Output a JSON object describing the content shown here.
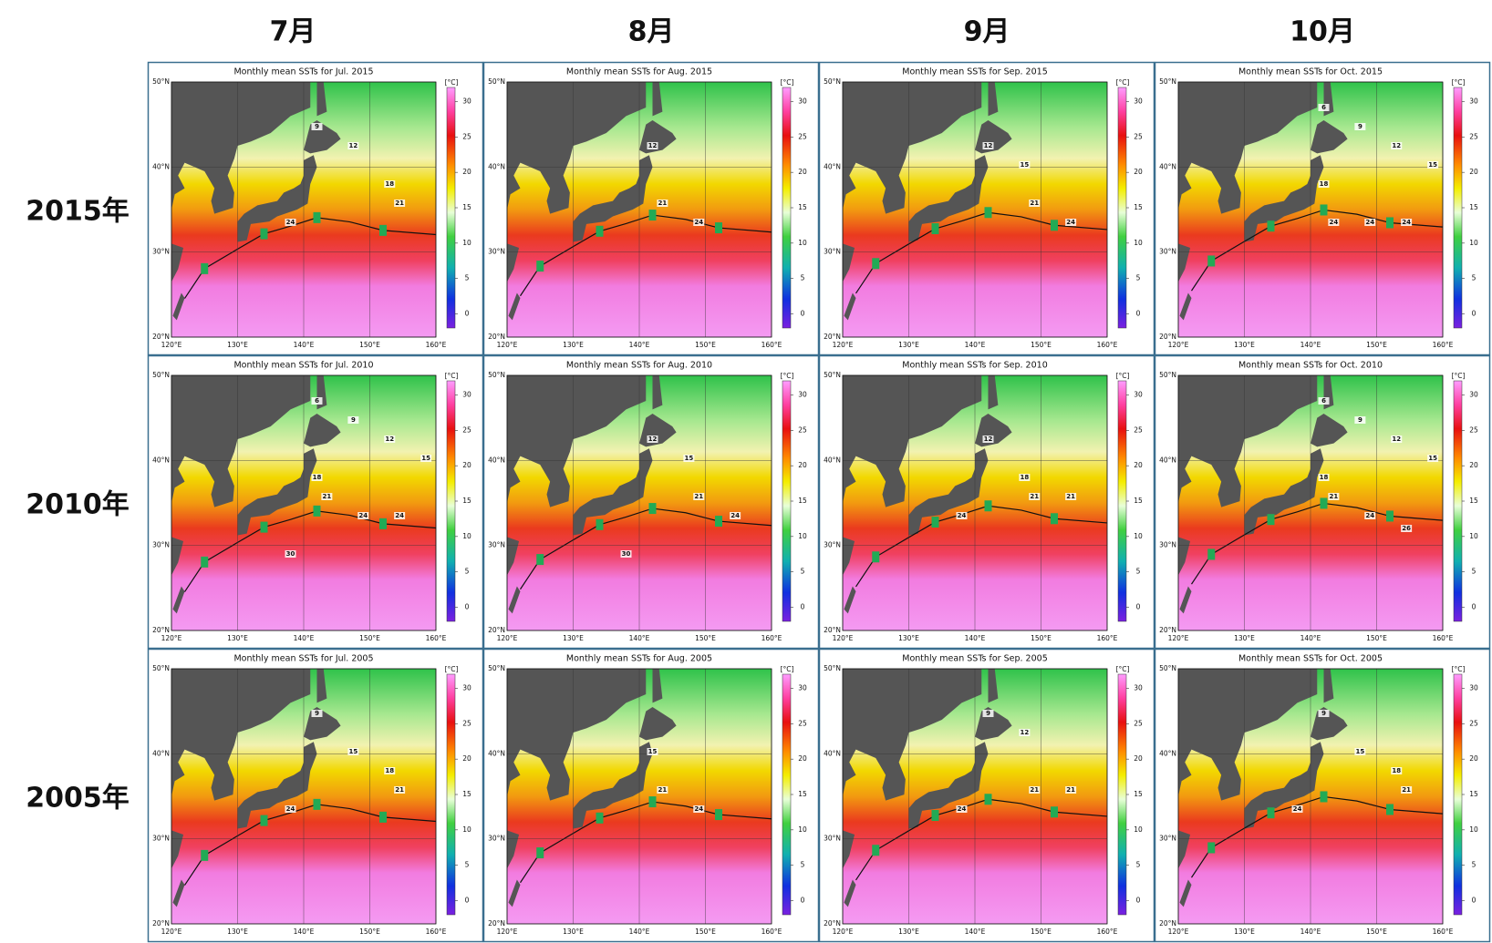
{
  "column_headers": [
    "7月",
    "8月",
    "9月",
    "10月"
  ],
  "row_headers": [
    "2015年",
    "2010年",
    "2005年"
  ],
  "map": {
    "lon_lim": [
      120,
      160
    ],
    "lat_lim": [
      20,
      50
    ],
    "lon_ticks": [
      {
        "value": 120,
        "label": "120°E"
      },
      {
        "value": 130,
        "label": "130°E"
      },
      {
        "value": 140,
        "label": "140°E"
      },
      {
        "value": 150,
        "label": "150°E"
      },
      {
        "value": 160,
        "label": "160°E"
      }
    ],
    "lat_ticks": [
      {
        "value": 20,
        "label": "20°N"
      },
      {
        "value": 30,
        "label": "30°N"
      },
      {
        "value": 40,
        "label": "40°N"
      },
      {
        "value": 50,
        "label": "50°N"
      }
    ]
  },
  "colorbar": {
    "unit": "[°C]",
    "lim": [
      -2,
      32
    ],
    "ticks": [
      0,
      5,
      10,
      15,
      20,
      25,
      30
    ]
  },
  "panels": [
    [
      {
        "title": "Monthly mean SSTs for Jul. 2015",
        "contour_labels": [
          9,
          12,
          18,
          21,
          24
        ]
      },
      {
        "title": "Monthly mean SSTs for Aug. 2015",
        "contour_labels": [
          12,
          21,
          24
        ]
      },
      {
        "title": "Monthly mean SSTs for Sep. 2015",
        "contour_labels": [
          12,
          15,
          21,
          24
        ]
      },
      {
        "title": "Monthly mean SSTs for Oct. 2015",
        "contour_labels": [
          6,
          9,
          12,
          15,
          18,
          24,
          24,
          24
        ]
      }
    ],
    [
      {
        "title": "Monthly mean SSTs for Jul. 2010",
        "contour_labels": [
          6,
          9,
          12,
          15,
          18,
          21,
          24,
          24,
          30
        ]
      },
      {
        "title": "Monthly mean SSTs for Aug. 2010",
        "contour_labels": [
          12,
          15,
          21,
          24,
          30
        ]
      },
      {
        "title": "Monthly mean SSTs for Sep. 2010",
        "contour_labels": [
          12,
          18,
          21,
          21,
          24
        ]
      },
      {
        "title": "Monthly mean SSTs for Oct. 2010",
        "contour_labels": [
          6,
          9,
          12,
          15,
          18,
          21,
          24,
          26
        ]
      }
    ],
    [
      {
        "title": "Monthly mean SSTs for Jul. 2005",
        "contour_labels": [
          9,
          15,
          18,
          21,
          24
        ]
      },
      {
        "title": "Monthly mean SSTs for Aug. 2005",
        "contour_labels": [
          15,
          21,
          24
        ]
      },
      {
        "title": "Monthly mean SSTs for Sep. 2005",
        "contour_labels": [
          9,
          12,
          21,
          21,
          24
        ]
      },
      {
        "title": "Monthly mean SSTs for Oct. 2005",
        "contour_labels": [
          9,
          15,
          18,
          21,
          24
        ]
      }
    ]
  ]
}
